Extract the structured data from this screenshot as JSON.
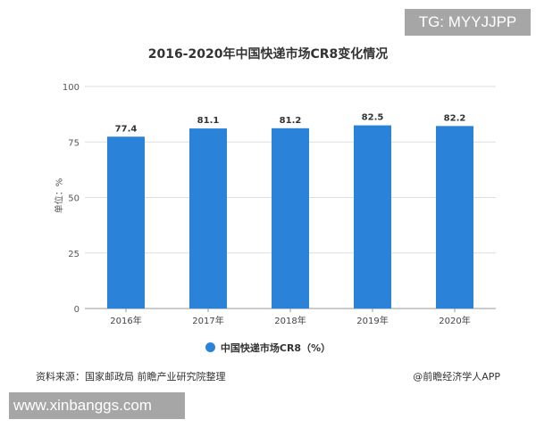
{
  "overlays": {
    "tg": "TG: MYYJJPP",
    "site": "www.xinbanggs.com"
  },
  "chart_data": {
    "type": "bar",
    "title": "2016-2020年中国快递市场CR8变化情况",
    "categories": [
      "2016年",
      "2017年",
      "2018年",
      "2019年",
      "2020年"
    ],
    "series": [
      {
        "name": "中国快递市场CR8（%）",
        "values": [
          77.4,
          81.1,
          81.2,
          82.5,
          82.2
        ],
        "color": "#2a82d9"
      }
    ],
    "ylabel": "单位：%",
    "ylim": [
      0,
      100
    ],
    "yticks": [
      0,
      25,
      50,
      75,
      100
    ],
    "grid": true,
    "legend": "bottom"
  },
  "footer": {
    "source": "资料来源：国家邮政局 前瞻产业研究院整理",
    "credit": "@前瞻经济学人APP"
  }
}
